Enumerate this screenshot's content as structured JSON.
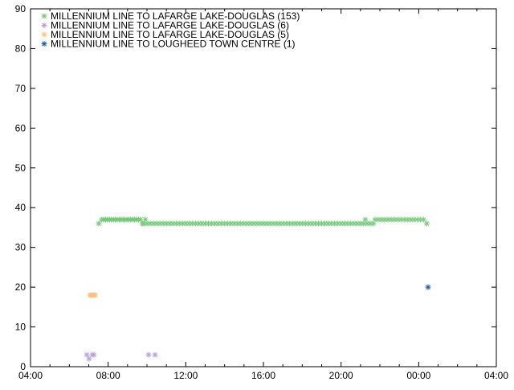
{
  "chart_data": {
    "type": "scatter",
    "title": "",
    "xlabel": "",
    "ylabel": "",
    "xlim": [
      "04:00",
      "04:00"
    ],
    "ylim": [
      0,
      90
    ],
    "x_tick_labels": [
      "04:00",
      "08:00",
      "12:00",
      "16:00",
      "20:00",
      "00:00",
      "04:00"
    ],
    "y_tick_labels": [
      "0",
      "10",
      "20",
      "30",
      "40",
      "50",
      "60",
      "70",
      "80",
      "90"
    ],
    "grid": false,
    "legend_placement": "top-left",
    "marker": "asterisk",
    "series": [
      {
        "name": "MILLENNIUM LINE TO LAFARGE LAKE-DOUGLAS (153)",
        "color": "#77c97a",
        "points": [
          [
            "07:31",
            36
          ],
          [
            "07:40",
            37
          ],
          [
            "07:46",
            37
          ],
          [
            "07:52",
            37
          ],
          [
            "07:58",
            37
          ],
          [
            "08:04",
            37
          ],
          [
            "08:10",
            37
          ],
          [
            "08:16",
            37
          ],
          [
            "08:22",
            37
          ],
          [
            "08:28",
            37
          ],
          [
            "08:34",
            37
          ],
          [
            "08:40",
            37
          ],
          [
            "08:46",
            37
          ],
          [
            "08:52",
            37
          ],
          [
            "08:58",
            37
          ],
          [
            "09:04",
            37
          ],
          [
            "09:10",
            37
          ],
          [
            "09:16",
            37
          ],
          [
            "09:22",
            37
          ],
          [
            "09:28",
            37
          ],
          [
            "09:34",
            37
          ],
          [
            "09:40",
            37
          ],
          [
            "09:46",
            36
          ],
          [
            "09:55",
            37
          ],
          [
            "09:50",
            36
          ],
          [
            "10:00",
            36
          ],
          [
            "10:10",
            36
          ],
          [
            "10:20",
            36
          ],
          [
            "10:30",
            36
          ],
          [
            "10:40",
            36
          ],
          [
            "10:50",
            36
          ],
          [
            "11:00",
            36
          ],
          [
            "11:10",
            36
          ],
          [
            "11:20",
            36
          ],
          [
            "11:30",
            36
          ],
          [
            "11:40",
            36
          ],
          [
            "11:50",
            36
          ],
          [
            "12:00",
            36
          ],
          [
            "12:10",
            36
          ],
          [
            "12:20",
            36
          ],
          [
            "12:30",
            36
          ],
          [
            "12:40",
            36
          ],
          [
            "12:50",
            36
          ],
          [
            "13:00",
            36
          ],
          [
            "13:10",
            36
          ],
          [
            "13:20",
            36
          ],
          [
            "13:30",
            36
          ],
          [
            "13:40",
            36
          ],
          [
            "13:50",
            36
          ],
          [
            "14:00",
            36
          ],
          [
            "14:10",
            36
          ],
          [
            "14:20",
            36
          ],
          [
            "14:30",
            36
          ],
          [
            "14:40",
            36
          ],
          [
            "14:50",
            36
          ],
          [
            "15:00",
            36
          ],
          [
            "15:10",
            36
          ],
          [
            "15:20",
            36
          ],
          [
            "15:30",
            36
          ],
          [
            "15:40",
            36
          ],
          [
            "15:50",
            36
          ],
          [
            "16:00",
            36
          ],
          [
            "16:10",
            36
          ],
          [
            "16:20",
            36
          ],
          [
            "16:30",
            36
          ],
          [
            "16:40",
            36
          ],
          [
            "16:50",
            36
          ],
          [
            "17:00",
            36
          ],
          [
            "17:10",
            36
          ],
          [
            "17:20",
            36
          ],
          [
            "17:30",
            36
          ],
          [
            "17:40",
            36
          ],
          [
            "17:50",
            36
          ],
          [
            "18:00",
            36
          ],
          [
            "18:10",
            36
          ],
          [
            "18:20",
            36
          ],
          [
            "18:30",
            36
          ],
          [
            "18:40",
            36
          ],
          [
            "18:50",
            36
          ],
          [
            "19:00",
            36
          ],
          [
            "19:10",
            36
          ],
          [
            "19:20",
            36
          ],
          [
            "19:30",
            36
          ],
          [
            "19:40",
            36
          ],
          [
            "19:50",
            36
          ],
          [
            "20:00",
            36
          ],
          [
            "20:10",
            36
          ],
          [
            "20:20",
            36
          ],
          [
            "20:30",
            36
          ],
          [
            "20:40",
            36
          ],
          [
            "20:50",
            36
          ],
          [
            "21:00",
            36
          ],
          [
            "21:10",
            36
          ],
          [
            "21:20",
            36
          ],
          [
            "21:30",
            36
          ],
          [
            "21:40",
            36
          ],
          [
            "21:15",
            37
          ],
          [
            "21:45",
            37
          ],
          [
            "21:55",
            37
          ],
          [
            "22:05",
            37
          ],
          [
            "22:15",
            37
          ],
          [
            "22:25",
            37
          ],
          [
            "22:35",
            37
          ],
          [
            "22:45",
            37
          ],
          [
            "22:55",
            37
          ],
          [
            "23:05",
            37
          ],
          [
            "23:15",
            37
          ],
          [
            "23:25",
            37
          ],
          [
            "23:35",
            37
          ],
          [
            "23:45",
            37
          ],
          [
            "23:55",
            37
          ],
          [
            "00:05",
            37
          ],
          [
            "00:15",
            37
          ],
          [
            "00:25",
            36
          ]
        ]
      },
      {
        "name": "MILLENNIUM LINE TO LAFARGE LAKE-DOUGLAS (6)",
        "color": "#b8a0d8",
        "points": [
          [
            "06:54",
            3
          ],
          [
            "07:01",
            2
          ],
          [
            "07:11",
            3
          ],
          [
            "07:16",
            3
          ],
          [
            "10:05",
            3
          ],
          [
            "10:25",
            3
          ]
        ]
      },
      {
        "name": "MILLENNIUM LINE TO LAFARGE LAKE-DOUGLAS (5)",
        "color": "#fdbf80",
        "points": [
          [
            "07:04",
            18
          ],
          [
            "07:08",
            18
          ],
          [
            "07:12",
            18
          ],
          [
            "07:16",
            18
          ],
          [
            "07:20",
            18
          ]
        ]
      },
      {
        "name": "MILLENNIUM LINE TO LOUGHEED TOWN CENTRE (1)",
        "color": "#1f5fa8",
        "points": [
          [
            "00:29",
            20
          ]
        ]
      }
    ]
  }
}
